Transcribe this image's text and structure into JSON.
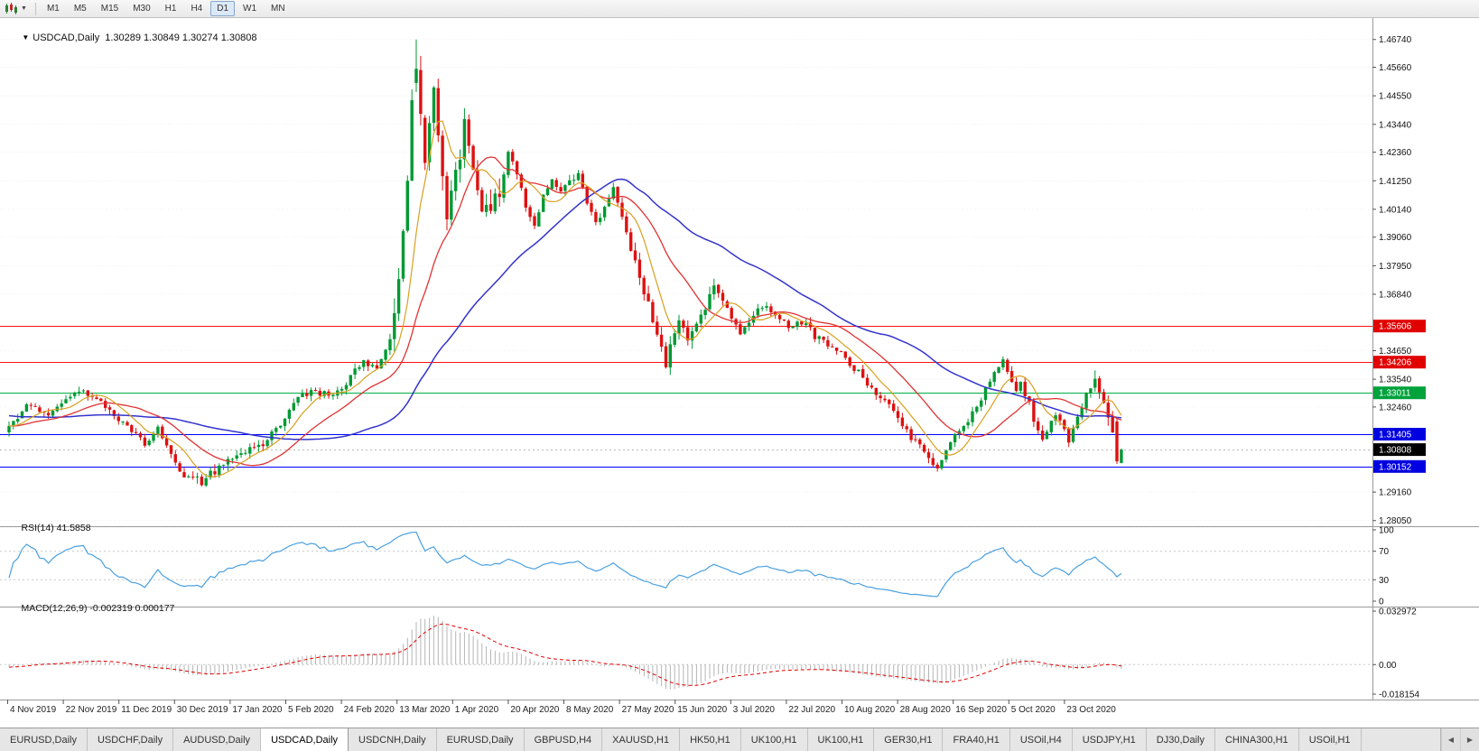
{
  "toolbar": {
    "timeframes": [
      "M1",
      "M5",
      "M15",
      "M30",
      "H1",
      "H4",
      "D1",
      "W1",
      "MN"
    ],
    "active_timeframe": "D1"
  },
  "chart": {
    "collapse_icon": "▼",
    "symbol_title": "USDCAD,Daily",
    "ohlc_text": "1.30289 1.30849 1.30274 1.30808"
  },
  "price_axis": {
    "labels": [
      "1.46740",
      "1.45660",
      "1.44550",
      "1.43440",
      "1.42360",
      "1.41250",
      "1.40140",
      "1.39060",
      "1.37950",
      "1.36840",
      "1.34650",
      "1.33540",
      "1.32460",
      "1.29160",
      "1.28050"
    ],
    "badges": [
      {
        "value": "1.35606",
        "color": "#e00000",
        "type": "resistance-line-label"
      },
      {
        "value": "1.34206",
        "color": "#e00000",
        "type": "resistance-line-label"
      },
      {
        "value": "1.33011",
        "color": "#00a23c",
        "type": "level-line-label"
      },
      {
        "value": "1.31405",
        "color": "#0000e0",
        "type": "support-line-label"
      },
      {
        "value": "1.30808",
        "color": "#000000",
        "type": "current-price-label"
      },
      {
        "value": "1.30152",
        "color": "#0000e0",
        "type": "support-line-label"
      }
    ]
  },
  "hlines": [
    {
      "price": 1.35606,
      "color": "#ff1010"
    },
    {
      "price": 1.34206,
      "color": "#ff1010"
    },
    {
      "price": 1.33011,
      "color": "#00b044"
    },
    {
      "price": 1.31405,
      "color": "#0000ff"
    },
    {
      "price": 1.30152,
      "color": "#0000ff"
    }
  ],
  "current_price": 1.30808,
  "date_axis": [
    "4 Nov 2019",
    "22 Nov 2019",
    "11 Dec 2019",
    "30 Dec 2019",
    "17 Jan 2020",
    "5 Feb 2020",
    "24 Feb 2020",
    "13 Mar 2020",
    "1 Apr 2020",
    "20 Apr 2020",
    "8 May 2020",
    "27 May 2020",
    "15 Jun 2020",
    "3 Jul 2020",
    "22 Jul 2020",
    "10 Aug 2020",
    "28 Aug 2020",
    "16 Sep 2020",
    "5 Oct 2020",
    "23 Oct 2020"
  ],
  "rsi_panel": {
    "label": "RSI(14)",
    "value": "41.5858",
    "axis_labels": [
      "100",
      "70",
      "30",
      "0"
    ]
  },
  "macd_panel": {
    "label": "MACD(12,26,9)",
    "values": "-0.002319 0.000177",
    "axis_labels": [
      "0.032972",
      "0.00",
      "-0.018154"
    ]
  },
  "tabs": {
    "items": [
      "EURUSD,Daily",
      "USDCHF,Daily",
      "AUDUSD,Daily",
      "USDCAD,Daily",
      "USDCNH,Daily",
      "EURUSD,Daily",
      "GBPUSD,H4",
      "XAUUSD,H1",
      "HK50,H1",
      "UK100,H1",
      "UK100,H1",
      "GER30,H1",
      "FRA40,H1",
      "USOil,H4",
      "USDJPY,H1",
      "DJ30,Daily",
      "CHINA300,H1",
      "USOil,H1"
    ],
    "active_index": 3,
    "scroll_left_icon": "◀",
    "scroll_right_icon": "▶"
  },
  "colors": {
    "up": "#009933",
    "down": "#dd1111",
    "ma_fast": "#d8a020",
    "ma_mid": "#e03232",
    "ma_slow": "#3333cc",
    "rsi_line": "#4aa0e0",
    "macd_hist": "#b4b4b4",
    "macd_signal": "#e00000"
  },
  "chart_data": {
    "type": "candlestick",
    "symbol": "USDCAD",
    "timeframe": "Daily",
    "bars": 255,
    "price_range": [
      1.279,
      1.475
    ],
    "keypoints": [
      [
        0,
        1.317
      ],
      [
        4,
        1.3245
      ],
      [
        9,
        1.322
      ],
      [
        14,
        1.3295
      ],
      [
        18,
        1.33
      ],
      [
        22,
        1.3255
      ],
      [
        27,
        1.3165
      ],
      [
        31,
        1.31
      ],
      [
        34,
        1.316
      ],
      [
        39,
        1.2985
      ],
      [
        44,
        1.2958
      ],
      [
        48,
        1.301
      ],
      [
        53,
        1.306
      ],
      [
        58,
        1.3105
      ],
      [
        62,
        1.318
      ],
      [
        66,
        1.329
      ],
      [
        70,
        1.3305
      ],
      [
        74,
        1.329
      ],
      [
        78,
        1.336
      ],
      [
        81,
        1.343
      ],
      [
        84,
        1.339
      ],
      [
        87,
        1.348
      ],
      [
        89,
        1.372
      ],
      [
        91,
        1.415
      ],
      [
        92,
        1.445
      ],
      [
        93,
        1.455
      ],
      [
        94,
        1.438
      ],
      [
        95,
        1.418
      ],
      [
        96,
        1.432
      ],
      [
        97,
        1.447
      ],
      [
        98,
        1.428
      ],
      [
        100,
        1.4
      ],
      [
        102,
        1.415
      ],
      [
        104,
        1.433
      ],
      [
        106,
        1.418
      ],
      [
        108,
        1.399
      ],
      [
        110,
        1.403
      ],
      [
        112,
        1.409
      ],
      [
        114,
        1.423
      ],
      [
        116,
        1.415
      ],
      [
        118,
        1.402
      ],
      [
        120,
        1.396
      ],
      [
        122,
        1.406
      ],
      [
        124,
        1.412
      ],
      [
        126,
        1.408
      ],
      [
        128,
        1.413
      ],
      [
        130,
        1.415
      ],
      [
        132,
        1.404
      ],
      [
        134,
        1.396
      ],
      [
        136,
        1.402
      ],
      [
        138,
        1.409
      ],
      [
        140,
        1.399
      ],
      [
        143,
        1.38
      ],
      [
        146,
        1.365
      ],
      [
        148,
        1.352
      ],
      [
        150,
        1.34
      ],
      [
        151,
        1.348
      ],
      [
        153,
        1.357
      ],
      [
        155,
        1.35
      ],
      [
        157,
        1.355
      ],
      [
        159,
        1.363
      ],
      [
        161,
        1.37
      ],
      [
        163,
        1.366
      ],
      [
        165,
        1.358
      ],
      [
        167,
        1.354
      ],
      [
        169,
        1.358
      ],
      [
        172,
        1.364
      ],
      [
        175,
        1.36
      ],
      [
        178,
        1.356
      ],
      [
        182,
        1.358
      ],
      [
        184,
        1.352
      ],
      [
        186,
        1.35
      ],
      [
        190,
        1.345
      ],
      [
        194,
        1.338
      ],
      [
        198,
        1.33
      ],
      [
        202,
        1.323
      ],
      [
        206,
        1.313
      ],
      [
        208,
        1.309
      ],
      [
        210,
        1.304
      ],
      [
        212,
        1.302
      ],
      [
        214,
        1.308
      ],
      [
        216,
        1.313
      ],
      [
        218,
        1.317
      ],
      [
        220,
        1.322
      ],
      [
        222,
        1.328
      ],
      [
        224,
        1.334
      ],
      [
        226,
        1.34
      ],
      [
        227,
        1.342
      ],
      [
        228,
        1.338
      ],
      [
        229,
        1.334
      ],
      [
        230,
        1.33
      ],
      [
        231,
        1.334
      ],
      [
        232,
        1.33
      ],
      [
        233,
        1.326
      ],
      [
        234,
        1.32
      ],
      [
        235,
        1.315
      ],
      [
        236,
        1.311
      ],
      [
        237,
        1.314
      ],
      [
        238,
        1.318
      ],
      [
        239,
        1.322
      ],
      [
        240,
        1.319
      ],
      [
        241,
        1.315
      ],
      [
        242,
        1.312
      ],
      [
        243,
        1.316
      ],
      [
        244,
        1.32
      ],
      [
        245,
        1.325
      ],
      [
        246,
        1.33
      ],
      [
        247,
        1.333
      ],
      [
        248,
        1.335
      ],
      [
        249,
        1.332
      ],
      [
        250,
        1.328
      ],
      [
        251,
        1.322
      ],
      [
        252,
        1.316
      ],
      [
        253,
        1.3035
      ],
      [
        254,
        1.30808
      ]
    ],
    "overrides": {
      "93": {
        "o": 1.4505,
        "h": 1.4674,
        "l": 1.447,
        "c": 1.456
      },
      "94": {
        "o": 1.4555,
        "h": 1.461,
        "l": 1.434,
        "c": 1.4385
      },
      "253": {
        "o": 1.319,
        "h": 1.3205,
        "l": 1.3025,
        "c": 1.3035
      },
      "254": {
        "o": 1.30289,
        "h": 1.30849,
        "l": 1.30274,
        "c": 1.30808
      }
    },
    "forced_lows": [
      [
        44,
        1.2952
      ],
      [
        212,
        1.2995
      ]
    ],
    "indicators": {
      "ma_fast": 8,
      "ma_mid": 20,
      "ma_slow": 50,
      "rsi": 14,
      "macd": [
        12,
        26,
        9
      ]
    }
  }
}
